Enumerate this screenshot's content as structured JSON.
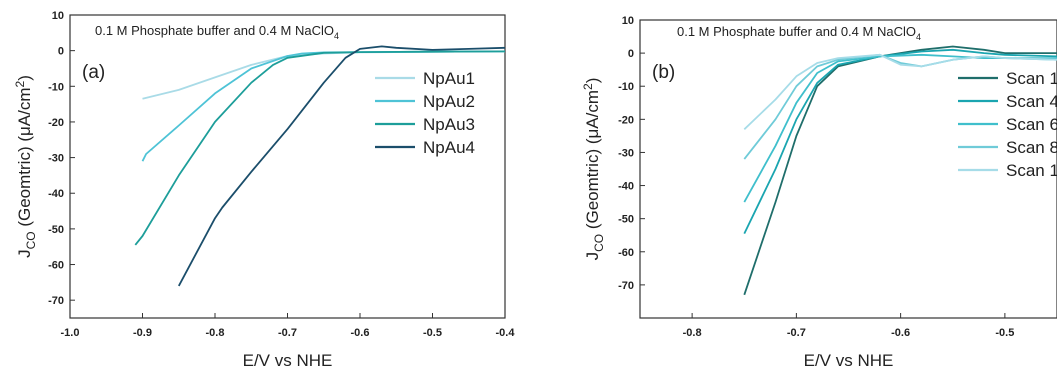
{
  "chart_data": [
    {
      "type": "line",
      "panel_label": "(a)",
      "annotation": "0.1 M Phosphate buffer and 0.4 M NaClO",
      "annotation_sub": "4",
      "xlabel": "E/V vs NHE",
      "ylabel": "J",
      "ylabel_sub": "CO",
      "ylabel_rest": " (Geomtric)  (μA/cm",
      "ylabel_sup": "2",
      "ylabel_end": ")",
      "xlim": [
        -1.0,
        -0.4
      ],
      "ylim": [
        -75,
        10
      ],
      "xticks": [
        -1.0,
        -0.9,
        -0.8,
        -0.7,
        -0.6,
        -0.5,
        -0.4
      ],
      "xtick_labels": [
        "-1.0",
        "-0.9",
        "-0.8",
        "-0.7",
        "-0.6",
        "-0.5",
        "-0.4"
      ],
      "yticks": [
        10,
        0,
        -10,
        -20,
        -30,
        -40,
        -50,
        -60,
        -70
      ],
      "ytick_labels": [
        "10",
        "0",
        "-10",
        "-20",
        "-30",
        "-40",
        "-50",
        "-60",
        "-70"
      ],
      "legend_position": "top-right",
      "series": [
        {
          "name": "NpAu1",
          "color": "#a9dbe7",
          "x": [
            -0.9,
            -0.85,
            -0.8,
            -0.75,
            -0.7,
            -0.65,
            -0.6,
            -0.5,
            -0.4
          ],
          "y": [
            -13.5,
            -11,
            -7.5,
            -4,
            -1.5,
            -0.8,
            -0.5,
            -0.3,
            -0.2
          ]
        },
        {
          "name": "NpAu2",
          "color": "#4ec3d6",
          "x": [
            -0.9,
            -0.895,
            -0.85,
            -0.8,
            -0.75,
            -0.7,
            -0.68,
            -0.65,
            -0.6,
            -0.5,
            -0.4
          ],
          "y": [
            -31,
            -29,
            -21,
            -12,
            -5,
            -1.5,
            -0.8,
            -0.5,
            -0.4,
            -0.3,
            -0.2
          ]
        },
        {
          "name": "NpAu3",
          "color": "#1d9e9a",
          "x": [
            -0.91,
            -0.9,
            -0.85,
            -0.8,
            -0.75,
            -0.72,
            -0.7,
            -0.65,
            -0.6,
            -0.5,
            -0.4
          ],
          "y": [
            -54.5,
            -52,
            -35,
            -20,
            -9,
            -4,
            -2,
            -0.6,
            -0.4,
            -0.3,
            -0.2
          ]
        },
        {
          "name": "NpAu4",
          "color": "#1b4e6b",
          "x": [
            -0.85,
            -0.8,
            -0.79,
            -0.75,
            -0.7,
            -0.65,
            -0.62,
            -0.6,
            -0.57,
            -0.55,
            -0.5,
            -0.45,
            -0.4
          ],
          "y": [
            -66,
            -47,
            -44,
            -34,
            -22,
            -9,
            -2,
            0.5,
            1.2,
            0.8,
            0.2,
            0.5,
            0.8
          ]
        }
      ]
    },
    {
      "type": "line",
      "panel_label": "(b)",
      "annotation": "0.1 M Phosphate buffer and 0.4 M NaClO",
      "annotation_sub": "4",
      "xlabel": "E/V vs NHE",
      "ylabel": "J",
      "ylabel_sub": "CO",
      "ylabel_rest": " (Geomtric)  (μA/cm",
      "ylabel_sup": "2",
      "ylabel_end": ")",
      "xlim": [
        -0.85,
        -0.45
      ],
      "ylim": [
        -80,
        10
      ],
      "xticks": [
        -0.8,
        -0.7,
        -0.6,
        -0.5
      ],
      "xtick_labels": [
        "-0.8",
        "-0.7",
        "-0.6",
        "-0.5"
      ],
      "yticks": [
        10,
        0,
        -10,
        -20,
        -30,
        -40,
        -50,
        -60,
        -70
      ],
      "ytick_labels": [
        "10",
        "0",
        "-10",
        "-20",
        "-30",
        "-40",
        "-50",
        "-60",
        "-70"
      ],
      "legend_position": "top-right",
      "series": [
        {
          "name": "Scan 1",
          "color": "#1f6e6b",
          "x": [
            -0.75,
            -0.72,
            -0.7,
            -0.68,
            -0.66,
            -0.62,
            -0.58,
            -0.55,
            -0.52,
            -0.5,
            -0.45
          ],
          "y": [
            -73,
            -45,
            -25,
            -10,
            -4,
            -1,
            1,
            2,
            1,
            0,
            0
          ]
        },
        {
          "name": "Scan 4",
          "color": "#1aa5b0",
          "x": [
            -0.75,
            -0.72,
            -0.7,
            -0.68,
            -0.66,
            -0.62,
            -0.58,
            -0.55,
            -0.52,
            -0.5,
            -0.45
          ],
          "y": [
            -54.5,
            -35,
            -20,
            -9,
            -3.5,
            -1,
            0.5,
            1,
            0,
            -0.5,
            -1
          ]
        },
        {
          "name": "Scan 6",
          "color": "#3fbfcc",
          "x": [
            -0.75,
            -0.72,
            -0.7,
            -0.68,
            -0.66,
            -0.62,
            -0.58,
            -0.55,
            -0.52,
            -0.5,
            -0.45
          ],
          "y": [
            -45,
            -28,
            -15,
            -6,
            -2.5,
            -1,
            -0.5,
            -1,
            -1.5,
            -1.5,
            -1.5
          ]
        },
        {
          "name": "Scan 8",
          "color": "#6fcbd8",
          "x": [
            -0.75,
            -0.72,
            -0.7,
            -0.68,
            -0.66,
            -0.62,
            -0.6,
            -0.58,
            -0.55,
            -0.52,
            -0.5,
            -0.45
          ],
          "y": [
            -32,
            -20,
            -10,
            -4,
            -2,
            -0.5,
            -3,
            -4,
            -2,
            -1,
            -1.5,
            -2
          ]
        },
        {
          "name": "Scan 10",
          "color": "#a6dce8",
          "x": [
            -0.75,
            -0.72,
            -0.7,
            -0.68,
            -0.66,
            -0.62,
            -0.6,
            -0.58,
            -0.55,
            -0.52,
            -0.5,
            -0.45
          ],
          "y": [
            -23,
            -14,
            -7,
            -3,
            -1.5,
            -0.5,
            -3.5,
            -4,
            -2,
            -1,
            -1.5,
            -2
          ]
        }
      ]
    }
  ]
}
